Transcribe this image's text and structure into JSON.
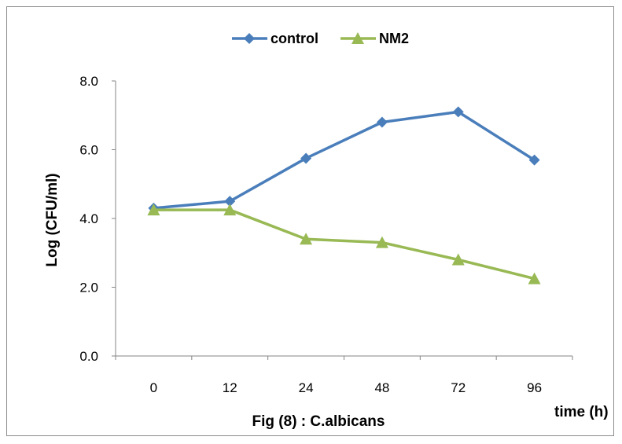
{
  "chart_data": {
    "type": "line",
    "categories": [
      "0",
      "12",
      "24",
      "48",
      "72",
      "96"
    ],
    "series": [
      {
        "name": "control",
        "values": [
          4.3,
          4.5,
          5.75,
          6.8,
          7.1,
          5.7
        ],
        "color": "#4a7ebb",
        "marker": "diamond"
      },
      {
        "name": "NM2",
        "values": [
          4.25,
          4.25,
          3.4,
          3.3,
          2.8,
          2.25
        ],
        "color": "#98b954",
        "marker": "triangle"
      }
    ],
    "ylim": [
      0,
      8
    ],
    "yticks": [
      "0.0",
      "2.0",
      "4.0",
      "6.0",
      "8.0"
    ],
    "ylabel": "Log (CFU/ml)",
    "xlabel": "time (h)",
    "caption": "Fig (8) : C.albicans",
    "legend_position": "top",
    "grid": false
  }
}
